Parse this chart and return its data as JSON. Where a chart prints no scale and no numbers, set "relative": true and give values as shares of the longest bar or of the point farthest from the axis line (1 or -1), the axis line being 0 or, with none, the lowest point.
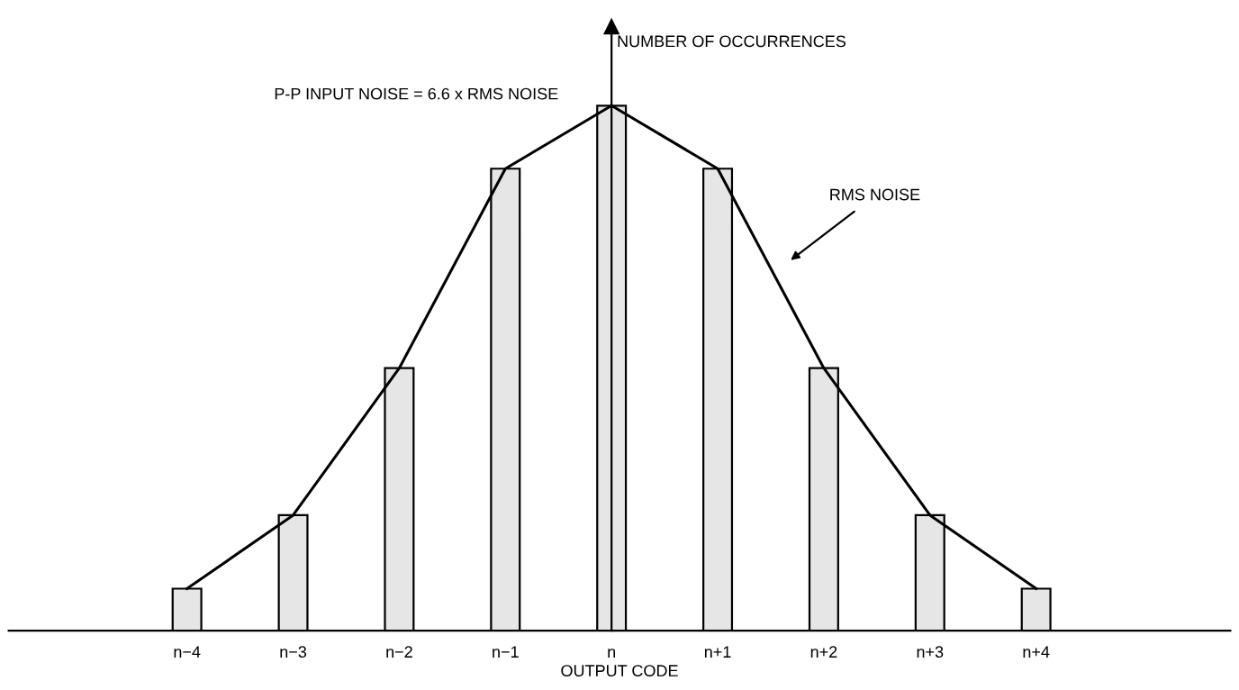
{
  "chart_data": {
    "type": "bar",
    "relative": true,
    "categories": [
      "n−4",
      "n−3",
      "n−2",
      "n−1",
      "n",
      "n+1",
      "n+2",
      "n+3",
      "n+4"
    ],
    "series": [
      {
        "color": "#e6e6e6",
        "values": [
          0.08,
          0.22,
          0.5,
          0.88,
          1,
          0.88,
          0.5,
          0.22,
          0.08
        ]
      },
      {
        "type": "line",
        "color": "#000000",
        "values": [
          0.08,
          0.22,
          0.5,
          0.88,
          1,
          0.88,
          0.5,
          0.22,
          0.08
        ]
      }
    ],
    "ylabel": "NUMBER OF OCCURRENCES",
    "xlabel": "OUTPUT CODE",
    "annotations": [
      "P-P INPUT NOISE = 6.6 x RMS NOISE",
      "RMS NOISE"
    ],
    "legend": false,
    "marker": "none",
    "line_style": "solid"
  }
}
